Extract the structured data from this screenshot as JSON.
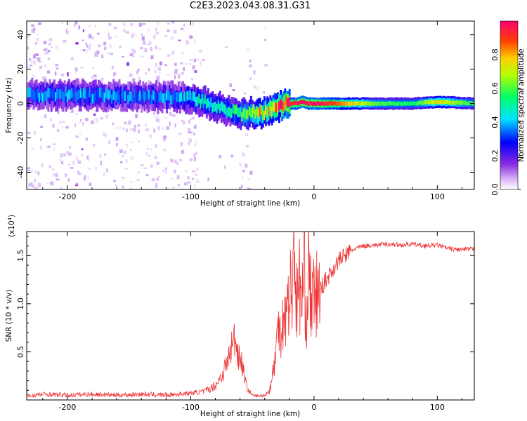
{
  "title": "C2E3.2023.043.08.31.G31",
  "chart_data": [
    {
      "type": "heatmap",
      "xlabel": "Height of straight line (km)",
      "ylabel": "Frequency (Hz)",
      "xlim": [
        -233,
        130
      ],
      "ylim": [
        -50,
        48
      ],
      "xticks": [
        -200,
        -100,
        0,
        100
      ],
      "yticks": [
        -40,
        -20,
        0,
        20,
        40
      ],
      "ridge": {
        "x": [
          -233,
          -200,
          -150,
          -120,
          -100,
          -90,
          -80,
          -70,
          -60,
          -55,
          -50,
          -45,
          -40,
          -35,
          -30,
          -25,
          -20,
          -15,
          -10,
          -5,
          0,
          20,
          50,
          80,
          100,
          130
        ],
        "freq": [
          5,
          5,
          4,
          4,
          3,
          1,
          -2,
          -4,
          -6,
          -6,
          -5,
          -6,
          -5,
          -3,
          -2,
          0,
          0,
          0,
          1,
          0,
          0,
          0,
          0,
          0,
          1,
          0
        ],
        "amplitude": [
          0.35,
          0.35,
          0.35,
          0.35,
          0.4,
          0.45,
          0.45,
          0.45,
          0.5,
          0.55,
          0.6,
          0.7,
          0.7,
          0.75,
          0.85,
          0.9,
          0.92,
          0.95,
          1.0,
          0.95,
          1.0,
          0.85,
          0.6,
          0.55,
          0.75,
          0.55
        ]
      },
      "colorbar": {
        "label": "Normalized spectral amplitude",
        "range": [
          0,
          1
        ],
        "ticks": [
          "0.0",
          "0.2",
          "0.4",
          "0.6",
          "0.8"
        ]
      }
    },
    {
      "type": "line",
      "xlabel": "Height of straight line (km)",
      "ylabel": "SNR (10 * v/v)",
      "yscale_note": "(x10",
      "yscale_exp": "4",
      "xlim": [
        -233,
        130
      ],
      "ylim": [
        0,
        1.75
      ],
      "xticks": [
        -200,
        -100,
        0,
        100
      ],
      "yticks": [
        "0.5",
        "1.0",
        "1.5"
      ],
      "series": [
        {
          "color": "#ee3333",
          "x": [
            -233,
            -220,
            -200,
            -180,
            -160,
            -140,
            -120,
            -100,
            -90,
            -80,
            -75,
            -70,
            -67,
            -64,
            -62,
            -60,
            -57,
            -55,
            -52,
            -50,
            -45,
            -40,
            -36,
            -33,
            -30,
            -28,
            -26,
            -24,
            -22,
            -20,
            -18,
            -16,
            -14,
            -12,
            -10,
            -8,
            -6,
            -4,
            -2,
            0,
            5,
            10,
            15,
            20,
            25,
            30,
            35,
            40,
            50,
            60,
            70,
            80,
            90,
            100,
            110,
            120,
            130
          ],
          "y": [
            0.03,
            0.05,
            0.04,
            0.05,
            0.04,
            0.05,
            0.04,
            0.06,
            0.08,
            0.15,
            0.25,
            0.4,
            0.55,
            0.65,
            0.5,
            0.45,
            0.3,
            0.15,
            0.08,
            0.05,
            0.04,
            0.05,
            0.1,
            0.3,
            0.6,
            0.9,
            0.7,
            1.0,
            0.85,
            1.2,
            1.05,
            1.75,
            0.9,
            1.25,
            1.0,
            1.3,
            0.9,
            1.45,
            0.95,
            1.05,
            1.15,
            1.25,
            1.35,
            1.45,
            1.5,
            1.55,
            1.58,
            1.6,
            1.61,
            1.62,
            1.61,
            1.62,
            1.6,
            1.61,
            1.57,
            1.56,
            1.57
          ]
        }
      ]
    }
  ]
}
